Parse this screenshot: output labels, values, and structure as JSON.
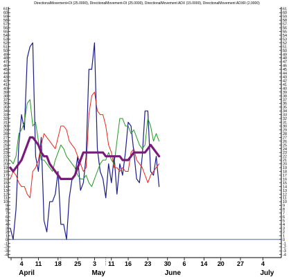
{
  "chart_data": {
    "type": "line",
    "title": "DirectionalMovement+DI (25.0000), DirectionalMovement-DI (25.0000), DirectionalMovement ADX (15.0000), DirectionalMovement ADXR (2.0000)",
    "xlabel": "",
    "ylabel": "",
    "ylim": [
      -5,
      62
    ],
    "x_ticks": [
      "4",
      "11",
      "18",
      "25",
      "3",
      "11",
      "16",
      "23",
      "30",
      "6",
      "14",
      "20",
      "27",
      "4"
    ],
    "x_tick_index": [
      3,
      9,
      16,
      23,
      29,
      35,
      41,
      48,
      55,
      61,
      68,
      74,
      81,
      89
    ],
    "x_months": [
      {
        "label": "April",
        "index": 3
      },
      {
        "label": "May",
        "index": 29
      },
      {
        "label": "June",
        "index": 55
      },
      {
        "label": "July",
        "index": 89
      }
    ],
    "y_ticks": [
      -4,
      -3,
      -2,
      -1,
      0,
      1,
      2,
      3,
      4,
      5,
      6,
      7,
      8,
      9,
      10,
      11,
      12,
      13,
      14,
      15,
      16,
      17,
      18,
      19,
      20,
      21,
      22,
      23,
      24,
      25,
      26,
      27,
      28,
      29,
      30,
      31,
      32,
      33,
      34,
      35,
      36,
      37,
      38,
      39,
      40,
      41,
      42,
      43,
      44,
      45,
      46,
      47,
      48,
      49,
      50,
      51,
      52,
      53,
      54,
      55,
      56,
      57,
      58,
      59,
      60,
      61
    ],
    "grid": false,
    "colors": {
      "zero_line": "#4a5bd6",
      "axis": "#000000"
    },
    "series": [
      {
        "color": "#1a1a8c",
        "width": 1.2,
        "points": [
          [
            -1,
            3
          ],
          [
            0,
            0
          ],
          [
            1,
            8
          ],
          [
            2,
            25
          ],
          [
            3,
            33
          ],
          [
            4,
            29
          ],
          [
            5,
            48
          ],
          [
            6,
            51
          ],
          [
            7,
            52
          ],
          [
            8,
            22
          ],
          [
            9,
            18
          ],
          [
            10,
            27
          ],
          [
            11,
            5
          ],
          [
            12,
            2
          ],
          [
            13,
            10
          ],
          [
            14,
            10
          ],
          [
            15,
            12
          ],
          [
            16,
            18
          ],
          [
            17,
            4
          ],
          [
            18,
            4
          ],
          [
            19,
            0
          ],
          [
            20,
            11
          ],
          [
            21,
            16
          ],
          [
            22,
            17
          ],
          [
            23,
            22
          ],
          [
            24,
            13
          ],
          [
            25,
            15
          ],
          [
            26,
            22
          ],
          [
            27,
            45
          ],
          [
            28,
            45
          ],
          [
            29,
            52
          ],
          [
            30,
            24
          ],
          [
            31,
            18
          ],
          [
            32,
            16
          ],
          [
            33,
            11
          ],
          [
            34,
            20
          ],
          [
            35,
            15
          ],
          [
            36,
            22
          ],
          [
            37,
            12
          ],
          [
            38,
            20
          ],
          [
            39,
            17
          ],
          [
            40,
            23
          ],
          [
            41,
            31
          ],
          [
            42,
            30
          ],
          [
            43,
            23
          ],
          [
            44,
            16
          ],
          [
            45,
            15
          ],
          [
            46,
            22
          ],
          [
            47,
            34
          ],
          [
            48,
            34
          ],
          [
            49,
            18
          ],
          [
            50,
            17
          ],
          [
            51,
            22
          ],
          [
            52,
            14
          ]
        ]
      },
      {
        "color": "#1f9a1f",
        "width": 1.0,
        "points": [
          [
            -1,
            21
          ],
          [
            0,
            20
          ],
          [
            1,
            22
          ],
          [
            2,
            28
          ],
          [
            3,
            29
          ],
          [
            4,
            31
          ],
          [
            5,
            36
          ],
          [
            6,
            37
          ],
          [
            7,
            30
          ],
          [
            8,
            31
          ],
          [
            9,
            26
          ],
          [
            10,
            21
          ],
          [
            11,
            21
          ],
          [
            12,
            20
          ],
          [
            13,
            19
          ],
          [
            14,
            18
          ],
          [
            15,
            21
          ],
          [
            16,
            23
          ],
          [
            17,
            25
          ],
          [
            18,
            24
          ],
          [
            19,
            22
          ],
          [
            20,
            21
          ],
          [
            21,
            20
          ],
          [
            22,
            19
          ],
          [
            23,
            17
          ],
          [
            24,
            16
          ],
          [
            25,
            16
          ],
          [
            26,
            17
          ],
          [
            27,
            15
          ],
          [
            28,
            14
          ],
          [
            29,
            16
          ],
          [
            30,
            18
          ],
          [
            31,
            20
          ],
          [
            32,
            21
          ],
          [
            33,
            21
          ],
          [
            34,
            23
          ],
          [
            35,
            21
          ],
          [
            36,
            20
          ],
          [
            37,
            26
          ],
          [
            38,
            32
          ],
          [
            39,
            32
          ],
          [
            40,
            30
          ],
          [
            41,
            30
          ],
          [
            42,
            28
          ],
          [
            43,
            29
          ],
          [
            44,
            27
          ],
          [
            45,
            25
          ],
          [
            46,
            24
          ],
          [
            47,
            25
          ],
          [
            48,
            32
          ],
          [
            49,
            30
          ],
          [
            50,
            26
          ],
          [
            51,
            28
          ],
          [
            52,
            26
          ]
        ]
      },
      {
        "color": "#e8261b",
        "width": 1.0,
        "points": [
          [
            -1,
            16
          ],
          [
            0,
            18
          ],
          [
            1,
            17
          ],
          [
            2,
            15
          ],
          [
            3,
            14
          ],
          [
            4,
            14
          ],
          [
            5,
            12
          ],
          [
            6,
            11
          ],
          [
            7,
            18
          ],
          [
            8,
            19
          ],
          [
            9,
            21
          ],
          [
            10,
            25
          ],
          [
            11,
            28
          ],
          [
            12,
            27
          ],
          [
            13,
            26
          ],
          [
            14,
            25
          ],
          [
            15,
            24
          ],
          [
            16,
            27
          ],
          [
            17,
            30
          ],
          [
            18,
            30
          ],
          [
            19,
            29
          ],
          [
            20,
            26
          ],
          [
            21,
            25
          ],
          [
            22,
            24
          ],
          [
            23,
            22
          ],
          [
            24,
            20
          ],
          [
            25,
            18
          ],
          [
            26,
            19
          ],
          [
            27,
            33
          ],
          [
            28,
            38
          ],
          [
            29,
            39
          ],
          [
            30,
            34
          ],
          [
            31,
            33
          ],
          [
            32,
            33
          ],
          [
            33,
            30
          ],
          [
            34,
            25
          ],
          [
            35,
            23
          ],
          [
            36,
            19
          ],
          [
            37,
            19
          ],
          [
            38,
            18
          ],
          [
            39,
            19
          ],
          [
            40,
            18
          ],
          [
            41,
            18
          ],
          [
            42,
            23
          ],
          [
            43,
            24
          ],
          [
            44,
            21
          ],
          [
            45,
            20
          ],
          [
            46,
            19
          ],
          [
            47,
            17
          ],
          [
            48,
            15
          ],
          [
            49,
            17
          ],
          [
            50,
            18
          ],
          [
            51,
            19
          ],
          [
            52,
            20
          ]
        ]
      },
      {
        "color": "#7a1a7a",
        "width": 3.2,
        "points": [
          [
            -1,
            19
          ],
          [
            0,
            18
          ],
          [
            1,
            19
          ],
          [
            2,
            20
          ],
          [
            3,
            21
          ],
          [
            4,
            23
          ],
          [
            5,
            25
          ],
          [
            6,
            27
          ],
          [
            7,
            27
          ],
          [
            8,
            26
          ],
          [
            9,
            25
          ],
          [
            10,
            23
          ],
          [
            11,
            22
          ],
          [
            12,
            22
          ],
          [
            13,
            20
          ],
          [
            14,
            19
          ],
          [
            15,
            18
          ],
          [
            16,
            17
          ],
          [
            17,
            16
          ],
          [
            18,
            16
          ],
          [
            19,
            16
          ],
          [
            20,
            16
          ],
          [
            21,
            16
          ],
          [
            22,
            17
          ],
          [
            23,
            19
          ],
          [
            24,
            21
          ],
          [
            25,
            23
          ],
          [
            26,
            23
          ],
          [
            27,
            23
          ],
          [
            28,
            23
          ],
          [
            29,
            23
          ],
          [
            30,
            23
          ],
          [
            31,
            23
          ],
          [
            32,
            23
          ],
          [
            33,
            22
          ],
          [
            34,
            22
          ],
          [
            35,
            22
          ],
          [
            36,
            22
          ],
          [
            37,
            22
          ],
          [
            38,
            22
          ],
          [
            39,
            21
          ],
          [
            40,
            21
          ],
          [
            41,
            21
          ],
          [
            42,
            22
          ],
          [
            43,
            23
          ],
          [
            44,
            23
          ],
          [
            45,
            23
          ],
          [
            46,
            23
          ],
          [
            47,
            23
          ],
          [
            48,
            24
          ],
          [
            49,
            25
          ],
          [
            50,
            24
          ],
          [
            51,
            23
          ],
          [
            52,
            22
          ]
        ]
      }
    ]
  }
}
